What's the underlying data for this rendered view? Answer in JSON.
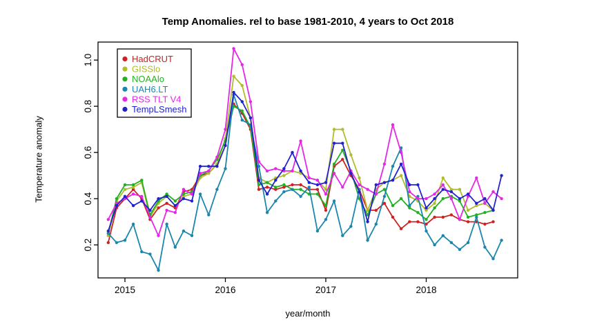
{
  "chart_data": {
    "type": "line",
    "title": "Temp Anomalies. rel to base 1981-2010, 4 years to Oct 2018",
    "xlabel": "year/month",
    "ylabel": "Temperature anomaly",
    "grid": false,
    "background": "#ffffff",
    "axis_color": "#000000",
    "legend_position": "top-left",
    "x_ticks": [
      {
        "label": "2015",
        "month_index": 2
      },
      {
        "label": "2016",
        "month_index": 14
      },
      {
        "label": "2017",
        "month_index": 26
      },
      {
        "label": "2018",
        "month_index": 38
      }
    ],
    "y_ticks": [
      {
        "label": "0.2",
        "value": 0.2
      },
      {
        "label": "0.4",
        "value": 0.4
      },
      {
        "label": "0.6",
        "value": 0.6
      },
      {
        "label": "0.8",
        "value": 0.8
      },
      {
        "label": "1.0",
        "value": 1.0
      }
    ],
    "ylim": [
      0.057,
      1.078
    ],
    "x_months": [
      "2014-11",
      "2014-12",
      "2015-01",
      "2015-02",
      "2015-03",
      "2015-04",
      "2015-05",
      "2015-06",
      "2015-07",
      "2015-08",
      "2015-09",
      "2015-10",
      "2015-11",
      "2015-12",
      "2016-01",
      "2016-02",
      "2016-03",
      "2016-04",
      "2016-05",
      "2016-06",
      "2016-07",
      "2016-08",
      "2016-09",
      "2016-10",
      "2016-11",
      "2016-12",
      "2017-01",
      "2017-02",
      "2017-03",
      "2017-04",
      "2017-05",
      "2017-06",
      "2017-07",
      "2017-08",
      "2017-09",
      "2017-10",
      "2017-11",
      "2017-12",
      "2018-01",
      "2018-02",
      "2018-03",
      "2018-04",
      "2018-05",
      "2018-06",
      "2018-07",
      "2018-08",
      "2018-09",
      "2018-10"
    ],
    "series": [
      {
        "name": "HadCRUT",
        "color": "#cc2222",
        "values": [
          0.21,
          0.36,
          0.4,
          0.44,
          0.4,
          0.31,
          0.36,
          0.38,
          0.36,
          0.43,
          0.44,
          0.5,
          0.51,
          0.55,
          0.66,
          0.81,
          0.77,
          0.7,
          0.44,
          0.45,
          0.44,
          0.45,
          0.46,
          0.46,
          0.44,
          0.44,
          0.35,
          0.54,
          0.57,
          0.5,
          0.44,
          0.35,
          0.35,
          0.38,
          0.32,
          0.27,
          0.3,
          0.3,
          0.29,
          0.32,
          0.32,
          0.33,
          0.31,
          0.3,
          0.3,
          0.29,
          0.3,
          null
        ]
      },
      {
        "name": "GISSlo",
        "color": "#b0bc2a",
        "values": [
          0.24,
          0.39,
          0.44,
          0.45,
          0.47,
          0.32,
          0.38,
          0.41,
          0.37,
          0.41,
          0.42,
          0.49,
          0.51,
          0.55,
          0.66,
          0.93,
          0.89,
          0.75,
          0.49,
          0.47,
          0.49,
          0.5,
          0.52,
          0.51,
          0.49,
          0.48,
          0.44,
          0.7,
          0.7,
          0.59,
          0.49,
          0.35,
          0.44,
          0.47,
          0.48,
          0.5,
          0.41,
          0.39,
          0.35,
          0.38,
          0.49,
          0.44,
          0.44,
          0.35,
          0.37,
          0.38,
          0.35,
          null
        ]
      },
      {
        "name": "NOAAlo",
        "color": "#22b022",
        "values": [
          0.25,
          0.4,
          0.46,
          0.46,
          0.48,
          0.33,
          0.39,
          0.42,
          0.39,
          0.42,
          0.43,
          0.5,
          0.52,
          0.57,
          0.65,
          0.8,
          0.78,
          0.71,
          0.46,
          0.47,
          0.45,
          0.46,
          0.44,
          0.44,
          0.42,
          0.42,
          0.37,
          0.55,
          0.61,
          0.52,
          0.4,
          0.33,
          0.42,
          0.44,
          0.37,
          0.4,
          0.36,
          0.34,
          0.31,
          0.36,
          0.4,
          0.41,
          0.39,
          0.32,
          0.33,
          0.34,
          0.35,
          null
        ]
      },
      {
        "name": "UAH6.LT",
        "color": "#1a86ad",
        "values": [
          0.25,
          0.21,
          0.22,
          0.29,
          0.17,
          0.16,
          0.09,
          0.29,
          0.19,
          0.26,
          0.24,
          0.42,
          0.33,
          0.44,
          0.53,
          0.85,
          0.74,
          0.72,
          0.54,
          0.34,
          0.39,
          0.43,
          0.44,
          0.41,
          0.45,
          0.26,
          0.31,
          0.39,
          0.24,
          0.28,
          0.44,
          0.22,
          0.29,
          0.41,
          0.54,
          0.62,
          0.37,
          0.41,
          0.26,
          0.2,
          0.24,
          0.21,
          0.18,
          0.21,
          0.32,
          0.19,
          0.14,
          0.22
        ]
      },
      {
        "name": "RSS TLT V4",
        "color": "#e626e6",
        "values": [
          0.31,
          0.38,
          0.4,
          0.42,
          0.41,
          0.32,
          0.24,
          0.35,
          0.34,
          0.44,
          0.42,
          0.51,
          0.52,
          0.58,
          0.7,
          1.05,
          0.98,
          0.82,
          0.56,
          0.52,
          0.53,
          0.52,
          0.52,
          0.65,
          0.49,
          0.48,
          0.42,
          0.51,
          0.45,
          0.52,
          0.46,
          0.44,
          0.42,
          0.55,
          0.72,
          0.6,
          0.43,
          0.4,
          0.4,
          0.42,
          0.46,
          0.4,
          0.31,
          0.41,
          0.49,
          0.38,
          0.43,
          0.4
        ]
      },
      {
        "name": "TempLSmesh",
        "color": "#2222cc",
        "values": [
          0.26,
          0.37,
          0.41,
          0.37,
          0.39,
          0.35,
          0.4,
          0.41,
          0.37,
          0.4,
          0.39,
          0.54,
          0.54,
          0.54,
          0.63,
          0.86,
          0.82,
          0.75,
          0.48,
          0.42,
          0.48,
          0.53,
          0.6,
          0.52,
          0.47,
          0.46,
          0.47,
          0.64,
          0.64,
          0.51,
          0.43,
          0.3,
          0.46,
          0.47,
          0.48,
          0.55,
          0.46,
          0.46,
          0.36,
          0.4,
          0.44,
          0.43,
          0.4,
          0.42,
          0.38,
          0.4,
          0.35,
          0.5
        ]
      }
    ]
  }
}
